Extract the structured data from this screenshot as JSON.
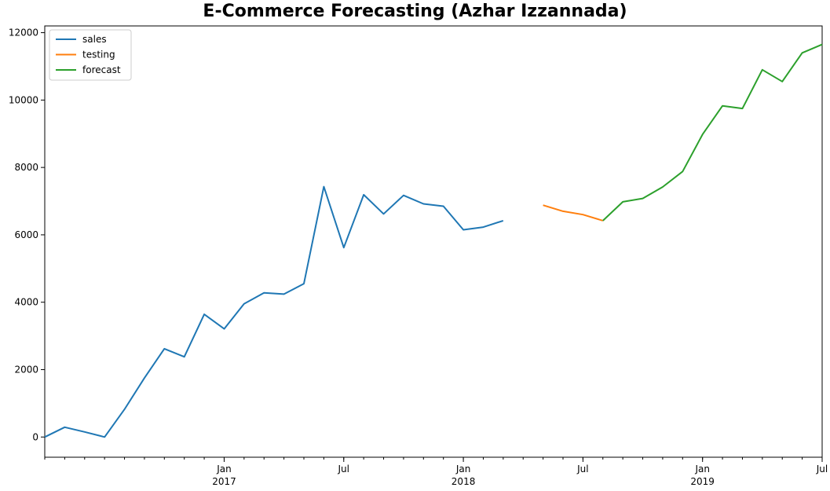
{
  "chart_data": {
    "type": "line",
    "title": "E-Commerce Forecasting (Azhar Izzannada)",
    "xlabel": "",
    "ylabel": "",
    "ylim": [
      -600,
      12200
    ],
    "xlim": [
      "2016-04",
      "2019-07"
    ],
    "grid": false,
    "legend_placement": "top-left",
    "y_ticks": [
      0,
      2000,
      4000,
      6000,
      8000,
      10000,
      12000
    ],
    "y_tick_labels": [
      "0",
      "2000",
      "4000",
      "6000",
      "8000",
      "10000",
      "12000"
    ],
    "x_ticks": [
      {
        "date": "2017-01",
        "label": "Jan",
        "sublabel": "2017"
      },
      {
        "date": "2017-07",
        "label": "Jul",
        "sublabel": ""
      },
      {
        "date": "2018-01",
        "label": "Jan",
        "sublabel": "2018"
      },
      {
        "date": "2018-07",
        "label": "Jul",
        "sublabel": ""
      },
      {
        "date": "2019-01",
        "label": "Jan",
        "sublabel": "2019"
      },
      {
        "date": "2019-07",
        "label": "Jul",
        "sublabel": ""
      }
    ],
    "series": [
      {
        "name": "sales",
        "color": "#1f77b4",
        "x": [
          "2016-04",
          "2016-05",
          "2016-06",
          "2016-07",
          "2016-08",
          "2016-09",
          "2016-10",
          "2016-11",
          "2016-12",
          "2017-01",
          "2017-02",
          "2017-03",
          "2017-04",
          "2017-05",
          "2017-06",
          "2017-07",
          "2017-08",
          "2017-09",
          "2017-10",
          "2017-11",
          "2017-12",
          "2018-01",
          "2018-02",
          "2018-03",
          "2018-04",
          "2018-05",
          "2018-06",
          "2018-07",
          "2018-08"
        ],
        "y": [
          0,
          290,
          150,
          0,
          820,
          1750,
          2620,
          2380,
          3640,
          3210,
          3950,
          4280,
          4240,
          4550,
          7430,
          5620,
          7190,
          6620,
          7170,
          6920,
          6850,
          6150,
          6230,
          6420,
          null,
          null,
          null,
          null,
          null
        ]
      },
      {
        "name": "testing",
        "color": "#ff7f0e",
        "x": [
          "2018-05",
          "2018-06",
          "2018-07",
          "2018-08"
        ],
        "y": [
          6880,
          6700,
          6600,
          6420
        ]
      },
      {
        "name": "forecast",
        "color": "#2ca02c",
        "x": [
          "2018-08",
          "2018-09",
          "2018-10",
          "2018-11",
          "2018-12",
          "2019-01",
          "2019-02",
          "2019-03",
          "2019-04",
          "2019-05",
          "2019-06",
          "2019-07"
        ],
        "y": [
          6420,
          6980,
          7080,
          7420,
          7880,
          8980,
          9830,
          9750,
          10900,
          10550,
          11400,
          11650
        ]
      }
    ]
  }
}
